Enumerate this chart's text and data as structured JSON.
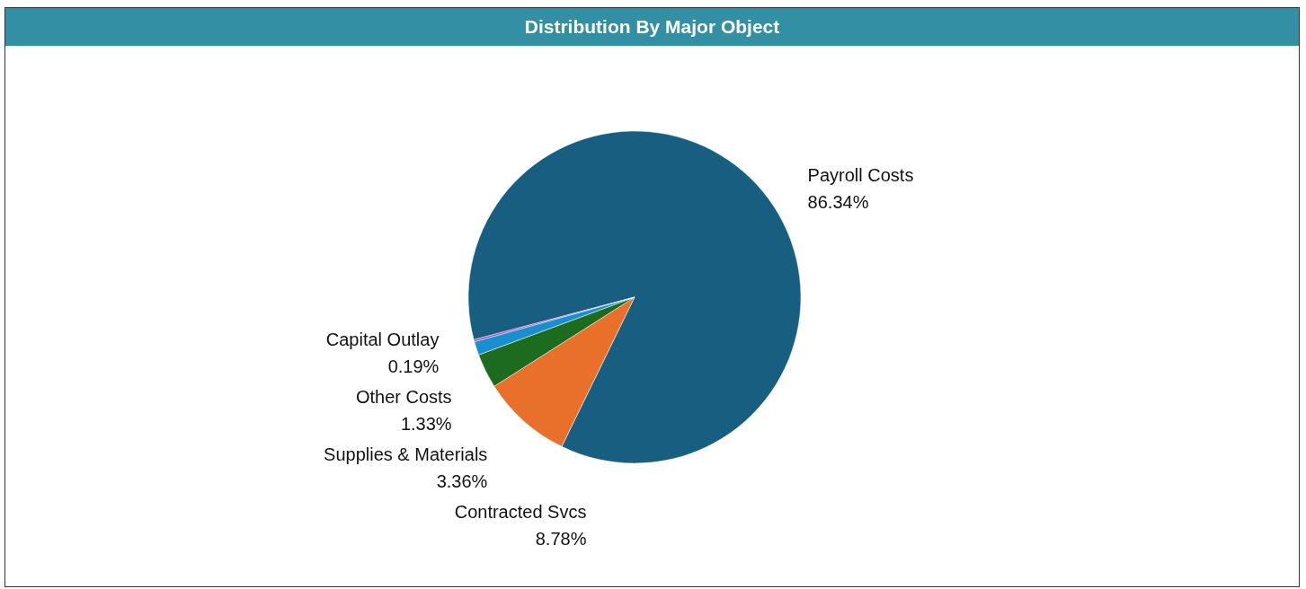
{
  "chart_data": {
    "type": "pie",
    "title": "Distribution By Major Object",
    "categories": [
      "Payroll Costs",
      "Contracted Svcs",
      "Supplies & Materials",
      "Other Costs",
      "Capital Outlay"
    ],
    "values": [
      86.34,
      8.78,
      3.36,
      1.33,
      0.19
    ],
    "colors": [
      "#175e80",
      "#e8702a",
      "#1d6b1f",
      "#1a8fd0",
      "#b03ab0"
    ],
    "value_labels": [
      "86.34%",
      "8.78%",
      "3.36%",
      "1.33%",
      "0.19%"
    ],
    "legend": false
  }
}
